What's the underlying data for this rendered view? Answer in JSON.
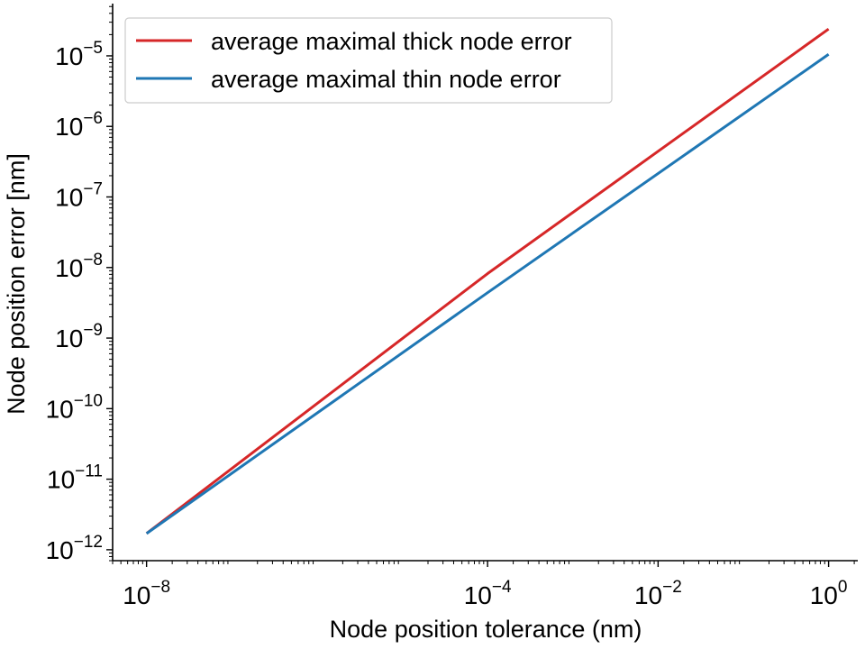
{
  "chart_data": {
    "type": "line",
    "xlabel": "Node position tolerance (nm)",
    "ylabel": "Node position error [nm]",
    "xscale": "log",
    "yscale": "log",
    "xlim": [
      4e-09,
      2.2
    ],
    "ylim": [
      7e-13,
      5.5e-05
    ],
    "xticks": [
      {
        "value": 1e-08,
        "base": "10",
        "exp": "−8"
      },
      {
        "value": 0.0001,
        "base": "10",
        "exp": "−4"
      },
      {
        "value": 0.01,
        "base": "10",
        "exp": "−2"
      },
      {
        "value": 1,
        "base": "10",
        "exp": "0"
      }
    ],
    "yticks": [
      {
        "value": 1e-12,
        "base": "10",
        "exp": "−12"
      },
      {
        "value": 1e-11,
        "base": "10",
        "exp": "−11"
      },
      {
        "value": 1e-10,
        "base": "10",
        "exp": "−10"
      },
      {
        "value": 1e-09,
        "base": "10",
        "exp": "−9"
      },
      {
        "value": 1e-08,
        "base": "10",
        "exp": "−8"
      },
      {
        "value": 1e-07,
        "base": "10",
        "exp": "−7"
      },
      {
        "value": 1e-06,
        "base": "10",
        "exp": "−6"
      },
      {
        "value": 1e-05,
        "base": "10",
        "exp": "−5"
      }
    ],
    "legend_position": "top-left",
    "grid": false,
    "series": [
      {
        "name": "average maximal thick node error",
        "color": "#d62728",
        "x": [
          1e-08,
          0.0001,
          1
        ],
        "y": [
          1.7e-12,
          8.2e-09,
          2.4e-05
        ]
      },
      {
        "name": "average maximal thin node error",
        "color": "#1f77b4",
        "x": [
          1e-08,
          0.0001,
          1
        ],
        "y": [
          1.7e-12,
          4.4e-09,
          1.05e-05
        ]
      }
    ]
  }
}
